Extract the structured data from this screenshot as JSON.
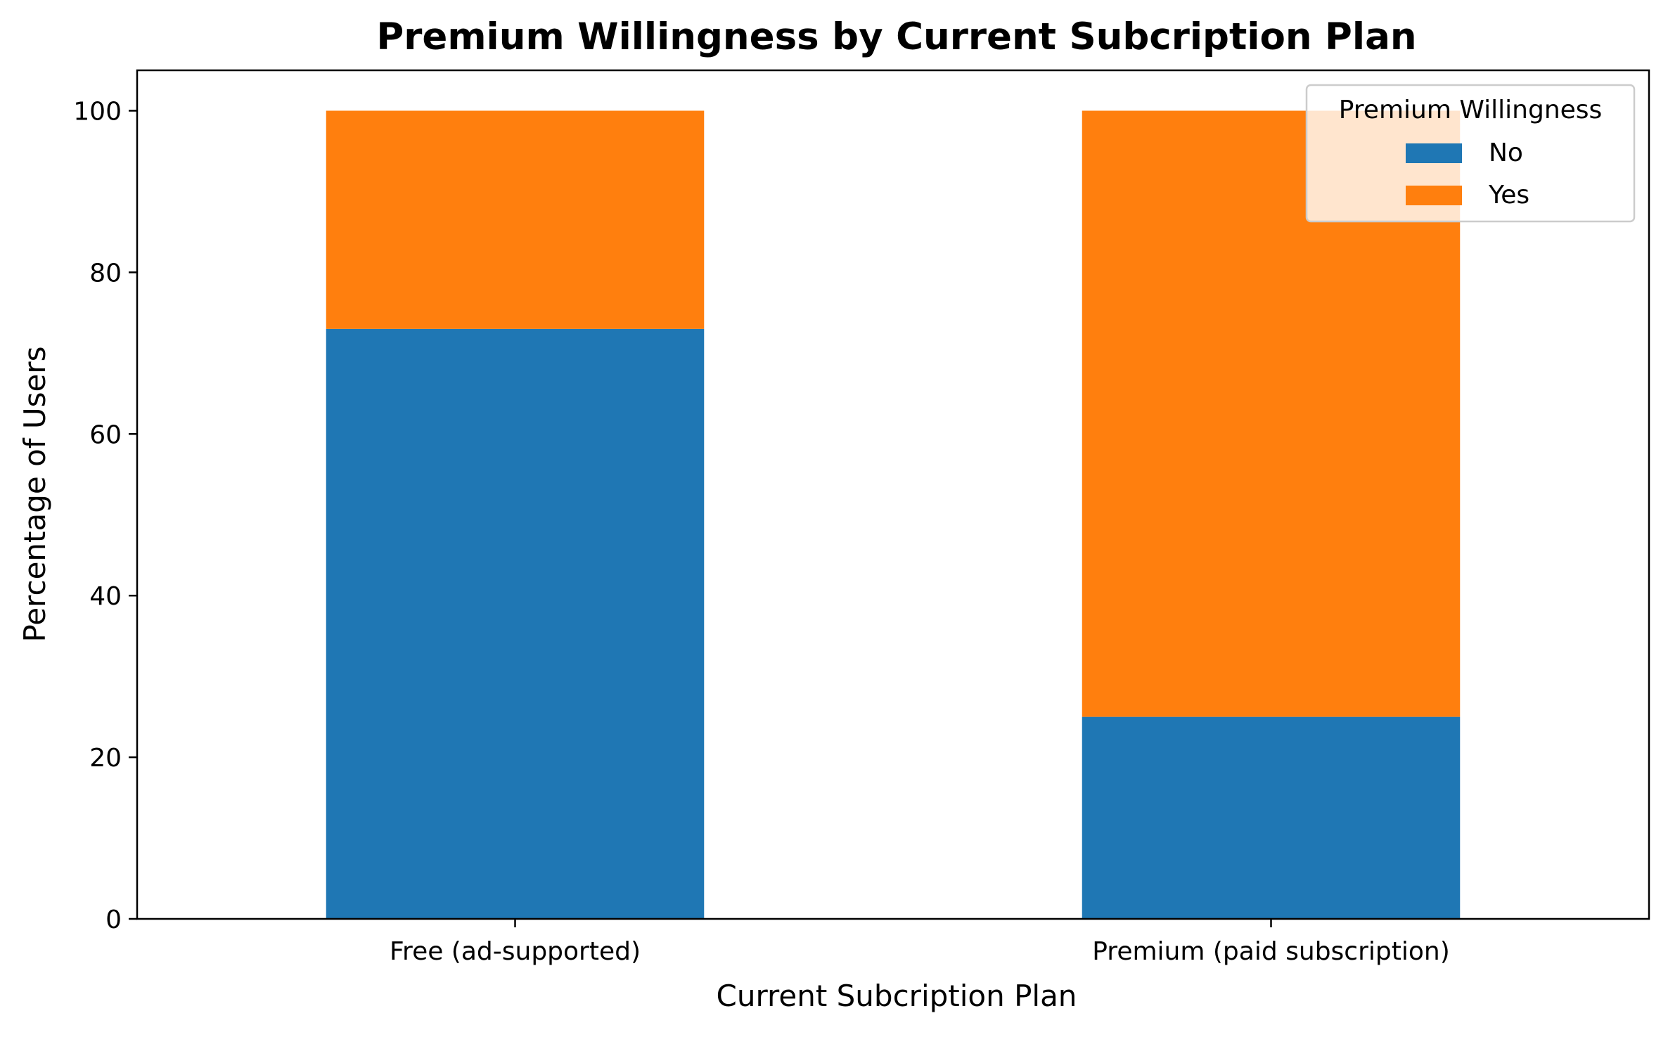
{
  "chart_data": {
    "type": "bar",
    "stacked": true,
    "title": "Premium Willingness by Current Subcription Plan",
    "xlabel": "Current Subcription Plan",
    "ylabel": "Percentage of Users",
    "categories": [
      "Free (ad-supported)",
      "Premium (paid subscription)"
    ],
    "series": [
      {
        "name": "No",
        "color": "#1f77b4",
        "values": [
          73.0,
          25.0
        ]
      },
      {
        "name": "Yes",
        "color": "#ff7f0e",
        "values": [
          27.0,
          75.0
        ]
      }
    ],
    "ylim": [
      0,
      105
    ],
    "yticks": [
      0,
      20,
      40,
      60,
      80,
      100
    ],
    "legend": {
      "title": "Premium Willingness",
      "position": "top-right"
    },
    "grid": false
  }
}
